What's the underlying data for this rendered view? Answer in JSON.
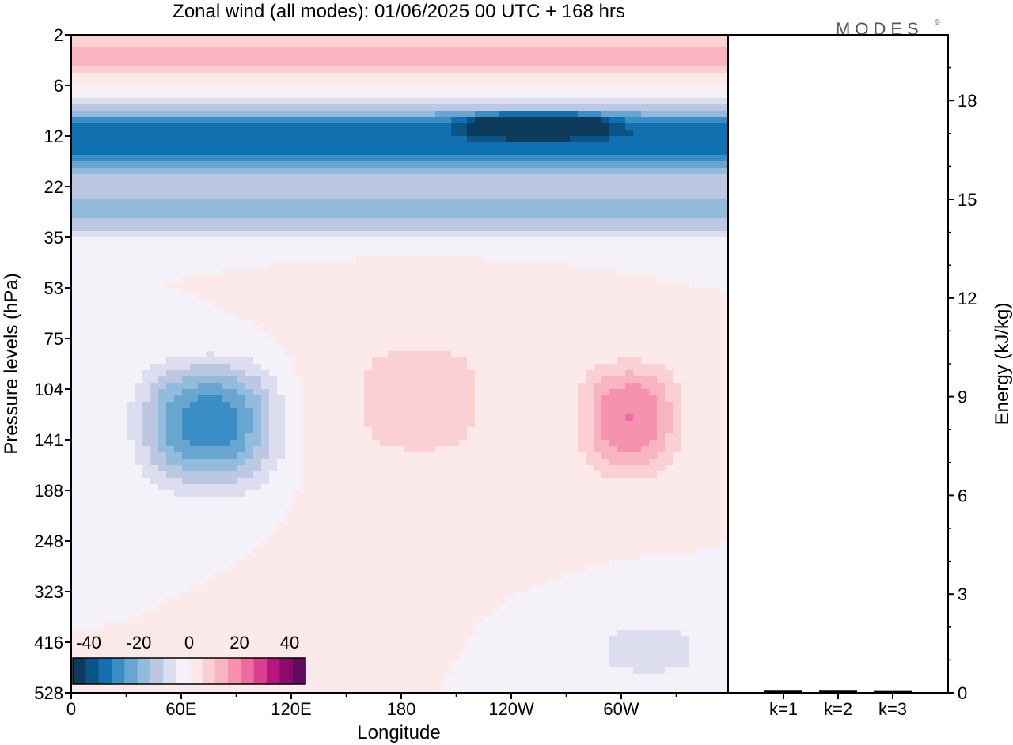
{
  "title": "Zonal wind (all modes):  01/06/2025  00 UTC  + 168 hrs",
  "logo": "MODES",
  "logo_mark": "©",
  "colors": {
    "scale": [
      "#0d3b5c",
      "#0a5486",
      "#1170b0",
      "#3a8ec5",
      "#68a6d0",
      "#93bbdc",
      "#bcc8e2",
      "#dcddef",
      "#f4f1f8",
      "#fce9e9",
      "#fbd0d3",
      "#f8b5c1",
      "#f592b0",
      "#ee6ca0",
      "#db3f8f",
      "#b5177c",
      "#8c0a6e",
      "#5f0a5a"
    ],
    "axis": "#000000",
    "frame": "#000000"
  },
  "colorbar": {
    "labels": [
      "-40",
      "-20",
      "0",
      "20",
      "40"
    ]
  },
  "chart_data": [
    {
      "type": "heatmap",
      "title": "Zonal wind (all modes):  01/06/2025  00 UTC  + 168 hrs",
      "xlabel": "Longitude",
      "ylabel": "Pressure levels (hPa)",
      "x_tick_labels": [
        "0",
        "60E",
        "120E",
        "180",
        "120W",
        "60W"
      ],
      "y_tick_labels": [
        "2",
        "6",
        "12",
        "22",
        "35",
        "53",
        "75",
        "104",
        "141",
        "188",
        "248",
        "323",
        "416",
        "528"
      ],
      "x_range_deg_east": [
        0,
        360
      ],
      "color_scale": {
        "min": -45,
        "max": 45,
        "step": 5,
        "unit": "m/s"
      },
      "features": [
        {
          "level_range_hPa": [
            2,
            5
          ],
          "lon_range": [
            0,
            360
          ],
          "value": 12
        },
        {
          "level_range_hPa": [
            8,
            20
          ],
          "lon_range": [
            0,
            360
          ],
          "value": -33
        },
        {
          "level_range_hPa": [
            9,
            12
          ],
          "lon_range": [
            220,
            290
          ],
          "value": -42
        },
        {
          "level_range_hPa": [
            22,
            35
          ],
          "lon_range": [
            0,
            360
          ],
          "value": -15
        },
        {
          "level_range_hPa": [
            90,
            180
          ],
          "lon_range": [
            40,
            110
          ],
          "value": -28
        },
        {
          "level_range_hPa": [
            90,
            170
          ],
          "lon_range": [
            280,
            330
          ],
          "value": 20
        },
        {
          "level_range_hPa": [
            60,
            200
          ],
          "lon_range": [
            130,
            250
          ],
          "value": 6
        },
        {
          "level_range_hPa": [
            350,
            528
          ],
          "lon_range": [
            270,
            360
          ],
          "value": -6
        }
      ]
    },
    {
      "type": "bar",
      "categories": [
        "k=1",
        "k=2",
        "k=3"
      ],
      "values": [
        0.03,
        0.03,
        0.02
      ],
      "ylabel": "Energy (kJ/kg)",
      "y_tick_labels": [
        "0",
        "3",
        "6",
        "9",
        "12",
        "15",
        "18"
      ],
      "ylim": [
        0,
        20
      ]
    }
  ]
}
